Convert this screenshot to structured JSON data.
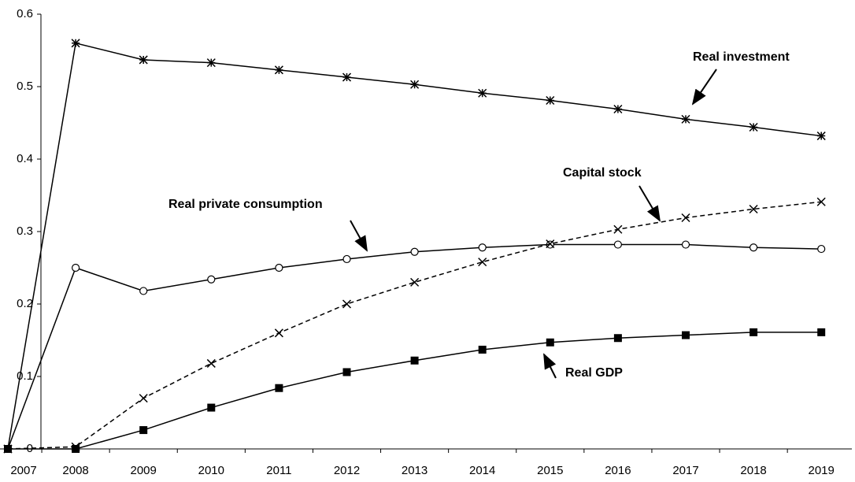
{
  "chart_data": {
    "type": "line",
    "categories": [
      "2007",
      "2008",
      "2009",
      "2010",
      "2011",
      "2012",
      "2013",
      "2014",
      "2015",
      "2016",
      "2017",
      "2018",
      "2019"
    ],
    "ylim": [
      0,
      0.6
    ],
    "yticks": [
      0,
      0.1,
      0.2,
      0.3,
      0.4,
      0.5,
      0.6
    ],
    "series": [
      {
        "name": "Real investment",
        "color": "#000000",
        "marker": "star",
        "dash": false,
        "values": [
          0,
          0.56,
          0.537,
          0.533,
          0.523,
          0.513,
          0.503,
          0.491,
          0.481,
          0.469,
          0.455,
          0.444,
          0.432
        ]
      },
      {
        "name": "Real private consumption",
        "color": "#000000",
        "marker": "circle",
        "dash": false,
        "values": [
          0,
          0.25,
          0.218,
          0.234,
          0.25,
          0.262,
          0.272,
          0.278,
          0.282,
          0.282,
          0.282,
          0.278,
          0.276
        ]
      },
      {
        "name": "Capital stock",
        "color": "#000000",
        "marker": "x",
        "dash": true,
        "values": [
          0,
          0.003,
          0.07,
          0.118,
          0.16,
          0.2,
          0.23,
          0.258,
          0.283,
          0.303,
          0.319,
          0.331,
          0.341
        ]
      },
      {
        "name": "Real GDP",
        "color": "#000000",
        "marker": "square",
        "dash": false,
        "values": [
          0,
          0,
          0.026,
          0.057,
          0.084,
          0.106,
          0.122,
          0.137,
          0.147,
          0.153,
          0.157,
          0.161,
          0.161
        ]
      }
    ]
  }
}
